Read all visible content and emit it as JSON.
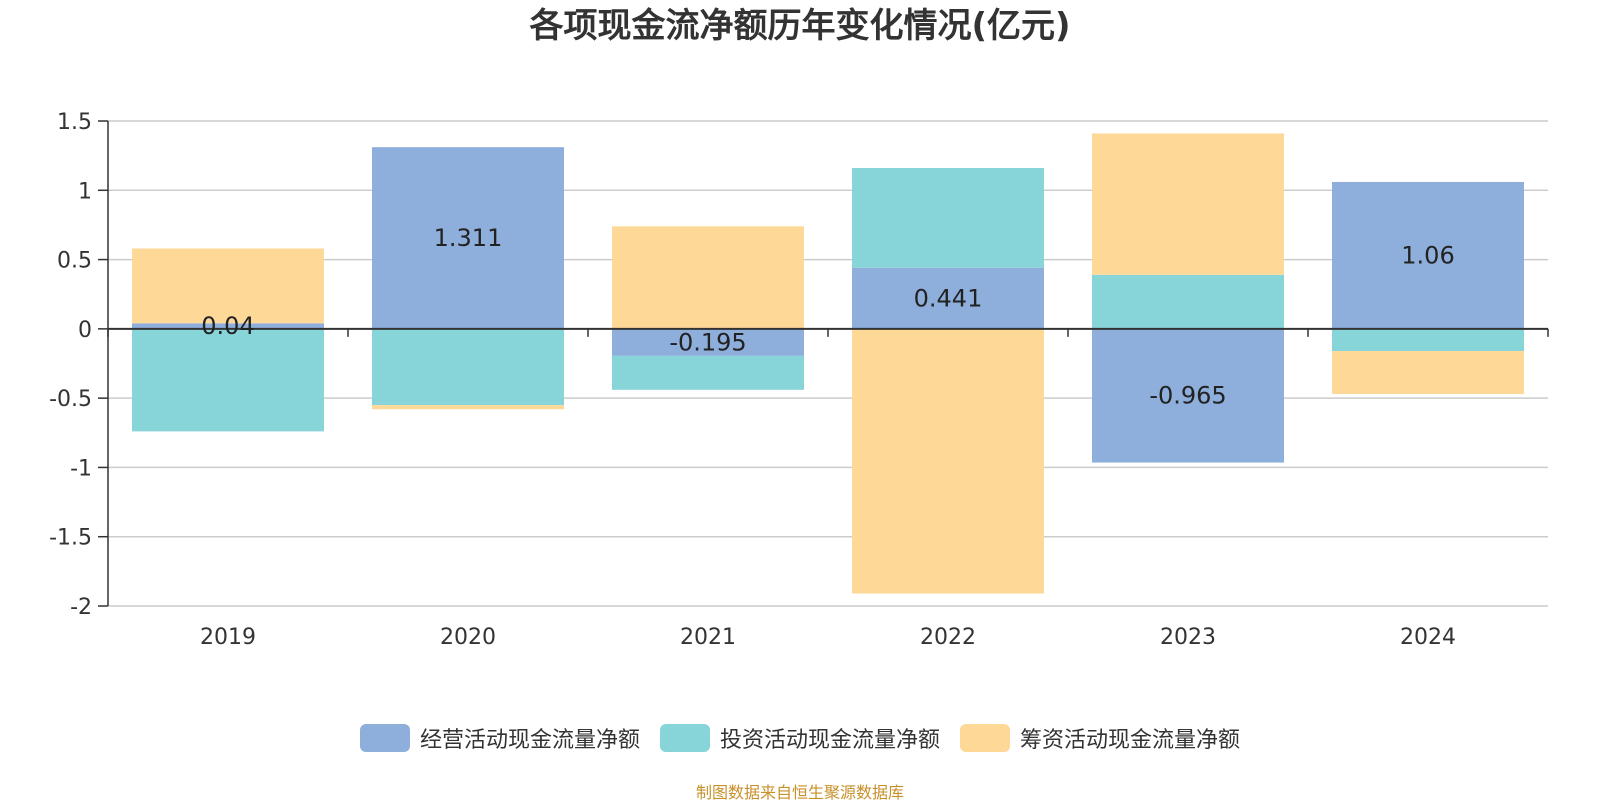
{
  "chart_data": {
    "type": "bar",
    "stacked": true,
    "title": "各项现金流净额历年变化情况(亿元)",
    "categories": [
      "2019",
      "2020",
      "2021",
      "2022",
      "2023",
      "2024"
    ],
    "series": [
      {
        "name": "经营活动现金流量净额",
        "color": "#8eaedb",
        "values": [
          0.04,
          1.311,
          -0.195,
          0.441,
          -0.965,
          1.06
        ],
        "labels": [
          "0.04",
          "1.311",
          "-0.195",
          "0.441",
          "-0.965",
          "1.06"
        ]
      },
      {
        "name": "投资活动现金流量净额",
        "color": "#87d5d9",
        "values": [
          -0.74,
          -0.55,
          -0.245,
          0.72,
          0.39,
          -0.16
        ],
        "labels": [
          "",
          "",
          "",
          "",
          "",
          ""
        ]
      },
      {
        "name": "筹资活动现金流量净额",
        "color": "#fed897",
        "values": [
          0.54,
          -0.03,
          0.74,
          -1.91,
          1.02,
          -0.31
        ],
        "labels": [
          "",
          "",
          "",
          "",
          "",
          ""
        ]
      }
    ],
    "ylim": [
      -2,
      1.5
    ],
    "yticks": [
      1.5,
      1,
      0.5,
      0,
      -0.5,
      -1,
      -1.5,
      -2
    ],
    "ytick_labels": [
      "1.5",
      "1",
      "0.5",
      "0",
      "-0.5",
      "-1",
      "-1.5",
      "-2"
    ],
    "xlabel": "",
    "ylabel": "",
    "grid": true,
    "legend_position": "bottom"
  },
  "source_note": "制图数据来自恒生聚源数据库"
}
